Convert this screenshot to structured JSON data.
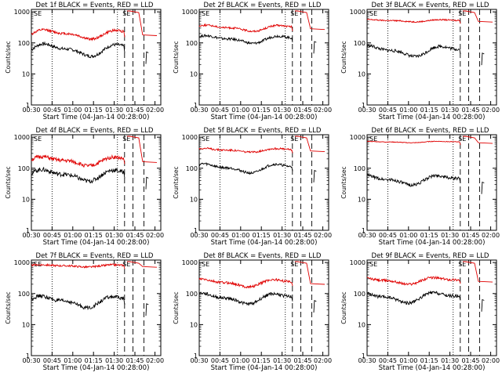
{
  "figure": {
    "colors": {
      "events": "#000000",
      "lld": "#e00000",
      "axes": "#000000"
    }
  },
  "chart_data": [
    {
      "type": "line",
      "title": "Det 1f BLACK = Events, RED = LLD",
      "xlabel": "Start Time (04-Jan-14 00:28:00)",
      "ylabel": "Counts/sec",
      "xticks": [
        "00:30",
        "00:45",
        "01:00",
        "01:15",
        "01:30",
        "01:45",
        "02:00"
      ],
      "yticks": [
        "1",
        "10",
        "100",
        "1000"
      ],
      "ylim": [
        1,
        1200
      ],
      "yscale": "log",
      "annotation": "SE",
      "series": [
        {
          "name": "Events",
          "color": "#000000",
          "base": 60,
          "wave": 0.16,
          "phase": 0.0,
          "noise": 0.05
        },
        {
          "name": "LLD",
          "color": "#e00000",
          "base": 190,
          "wave": 0.12,
          "phase": 0.0,
          "noise": 0.04
        }
      ]
    },
    {
      "type": "line",
      "title": "Det 2f BLACK = Events, RED = LLD",
      "xlabel": "Start Time (04-Jan-14 00:28:00)",
      "ylabel": "Counts/sec",
      "xticks": [
        "00:30",
        "00:45",
        "01:00",
        "01:15",
        "01:30",
        "01:45",
        "02:00"
      ],
      "yticks": [
        "1",
        "10",
        "100",
        "1000"
      ],
      "ylim": [
        1,
        1200
      ],
      "yscale": "log",
      "annotation": "SE",
      "series": [
        {
          "name": "Events",
          "color": "#000000",
          "base": 130,
          "wave": 0.1,
          "phase": 0.5,
          "noise": 0.04
        },
        {
          "name": "LLD",
          "color": "#e00000",
          "base": 300,
          "wave": 0.08,
          "phase": 0.5,
          "noise": 0.03
        }
      ]
    },
    {
      "type": "line",
      "title": "Det 3f BLACK = Events, RED = LLD",
      "xlabel": "Start Time (04-Jan-14 00:28:00)",
      "ylabel": "Counts/sec",
      "xticks": [
        "00:30",
        "00:45",
        "01:00",
        "01:15",
        "01:30",
        "01:45",
        "02:00"
      ],
      "yticks": [
        "1",
        "10",
        "100",
        "1000"
      ],
      "ylim": [
        1,
        1200
      ],
      "yscale": "log",
      "annotation": "SE",
      "series": [
        {
          "name": "Events",
          "color": "#000000",
          "base": 55,
          "wave": 0.14,
          "phase": 1.0,
          "noise": 0.05
        },
        {
          "name": "LLD",
          "color": "#e00000",
          "base": 520,
          "wave": 0.03,
          "phase": 1.0,
          "noise": 0.02
        }
      ]
    },
    {
      "type": "line",
      "title": "Det 4f BLACK = Events, RED = LLD",
      "xlabel": "Start Time (04-Jan-14 00:28:00)",
      "ylabel": "Counts/sec",
      "xticks": [
        "00:30",
        "00:45",
        "01:00",
        "01:15",
        "01:30",
        "01:45",
        "02:00"
      ],
      "yticks": [
        "1",
        "10",
        "100",
        "1000"
      ],
      "ylim": [
        1,
        1200
      ],
      "yscale": "log",
      "annotation": "SE",
      "series": [
        {
          "name": "Events",
          "color": "#000000",
          "base": 60,
          "wave": 0.15,
          "phase": 0.2,
          "noise": 0.07
        },
        {
          "name": "LLD",
          "color": "#e00000",
          "base": 170,
          "wave": 0.12,
          "phase": 0.2,
          "noise": 0.06
        }
      ]
    },
    {
      "type": "line",
      "title": "Det 5f BLACK = Events, RED = LLD",
      "xlabel": "Start Time (04-Jan-14 00:28:00)",
      "ylabel": "Counts/sec",
      "xticks": [
        "00:30",
        "00:45",
        "01:00",
        "01:15",
        "01:30",
        "01:45",
        "02:00"
      ],
      "yticks": [
        "1",
        "10",
        "100",
        "1000"
      ],
      "ylim": [
        1,
        1200
      ],
      "yscale": "log",
      "annotation": "SE",
      "series": [
        {
          "name": "Events",
          "color": "#000000",
          "base": 100,
          "wave": 0.12,
          "phase": 0.7,
          "noise": 0.04
        },
        {
          "name": "LLD",
          "color": "#e00000",
          "base": 380,
          "wave": 0.05,
          "phase": 0.7,
          "noise": 0.03
        }
      ]
    },
    {
      "type": "line",
      "title": "Det 6f BLACK = Events, RED = LLD",
      "xlabel": "Start Time (04-Jan-14 00:28:00)",
      "ylabel": "Counts/sec",
      "xticks": [
        "00:30",
        "00:45",
        "01:00",
        "01:15",
        "01:30",
        "01:45",
        "02:00"
      ],
      "yticks": [
        "1",
        "10",
        "100",
        "1000"
      ],
      "ylim": [
        1,
        1200
      ],
      "yscale": "log",
      "annotation": "SE",
      "series": [
        {
          "name": "Events",
          "color": "#000000",
          "base": 42,
          "wave": 0.13,
          "phase": 1.3,
          "noise": 0.05
        },
        {
          "name": "LLD",
          "color": "#e00000",
          "base": 700,
          "wave": 0.02,
          "phase": 1.3,
          "noise": 0.01
        }
      ]
    },
    {
      "type": "line",
      "title": "Det 7f BLACK = Events, RED = LLD",
      "xlabel": "Start Time (04-Jan-14 00:28:00)",
      "ylabel": "Counts/sec",
      "xticks": [
        "00:30",
        "00:45",
        "01:00",
        "01:15",
        "01:30",
        "01:45",
        "02:00"
      ],
      "yticks": [
        "1",
        "10",
        "100",
        "1000"
      ],
      "ylim": [
        1,
        1200
      ],
      "yscale": "log",
      "annotation": "SE",
      "series": [
        {
          "name": "Events",
          "color": "#000000",
          "base": 55,
          "wave": 0.15,
          "phase": 0.3,
          "noise": 0.06
        },
        {
          "name": "LLD",
          "color": "#e00000",
          "base": 780,
          "wave": 0.03,
          "phase": 0.3,
          "noise": 0.03
        }
      ]
    },
    {
      "type": "line",
      "title": "Det 8f BLACK = Events, RED = LLD",
      "xlabel": "Start Time (04-Jan-14 00:28:00)",
      "ylabel": "Counts/sec",
      "xticks": [
        "00:30",
        "00:45",
        "01:00",
        "01:15",
        "01:30",
        "01:45",
        "02:00"
      ],
      "yticks": [
        "1",
        "10",
        "100",
        "1000"
      ],
      "ylim": [
        1,
        1200
      ],
      "yscale": "log",
      "annotation": "SE",
      "series": [
        {
          "name": "Events",
          "color": "#000000",
          "base": 70,
          "wave": 0.14,
          "phase": 0.9,
          "noise": 0.05
        },
        {
          "name": "LLD",
          "color": "#e00000",
          "base": 220,
          "wave": 0.1,
          "phase": 0.9,
          "noise": 0.04
        }
      ]
    },
    {
      "type": "line",
      "title": "Det 9f BLACK = Events, RED = LLD",
      "xlabel": "Start Time (04-Jan-14 00:28:00)",
      "ylabel": "Counts/sec",
      "xticks": [
        "00:30",
        "00:45",
        "01:00",
        "01:15",
        "01:30",
        "01:45",
        "02:00"
      ],
      "yticks": [
        "1",
        "10",
        "100",
        "1000"
      ],
      "ylim": [
        1,
        1200
      ],
      "yscale": "log",
      "annotation": "SE",
      "series": [
        {
          "name": "Events",
          "color": "#000000",
          "base": 75,
          "wave": 0.14,
          "phase": 1.6,
          "noise": 0.05
        },
        {
          "name": "LLD",
          "color": "#e00000",
          "base": 260,
          "wave": 0.09,
          "phase": 1.6,
          "noise": 0.04
        }
      ]
    }
  ]
}
